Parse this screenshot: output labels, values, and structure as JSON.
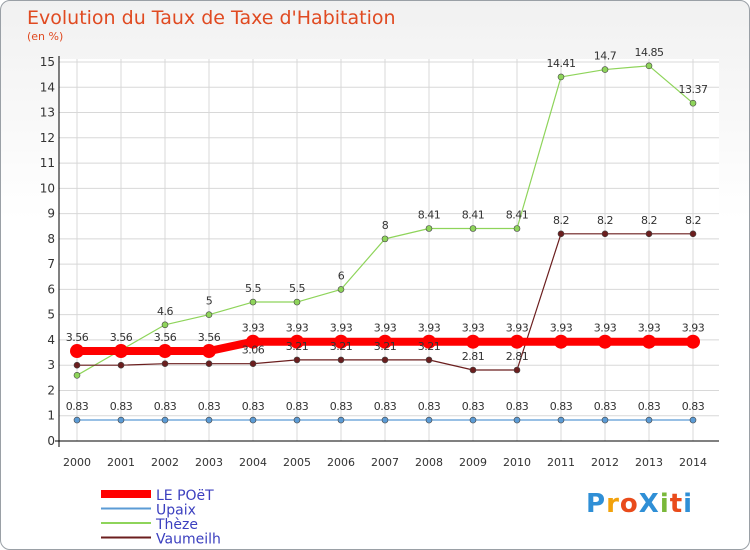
{
  "title": "Evolution du Taux de Taxe d'Habitation",
  "unit_label": "(en %)",
  "logo": {
    "text": "ProXiti",
    "colors": [
      "#2f8fd6",
      "#f2a20c",
      "#e94b1b",
      "#2f8fd6",
      "#7ab83a",
      "#e94b1b",
      "#2f8fd6"
    ]
  },
  "colors": {
    "title": "#e04a21",
    "legend_text": "#3b3fbf",
    "grid": "#d8d8d8"
  },
  "chart_data": {
    "type": "line",
    "title": "Evolution du Taux de Taxe d'Habitation",
    "ylabel": "(en %)",
    "xlabel": "",
    "ylim": [
      0,
      15
    ],
    "yticks": [
      0,
      1,
      2,
      3,
      4,
      5,
      6,
      7,
      8,
      9,
      10,
      11,
      12,
      13,
      14,
      15
    ],
    "grid": true,
    "legend_position": "bottom-left",
    "categories": [
      "2000",
      "2001",
      "2002",
      "2003",
      "2004",
      "2005",
      "2006",
      "2007",
      "2008",
      "2009",
      "2010",
      "2011",
      "2012",
      "2013",
      "2014"
    ],
    "series": [
      {
        "name": "LE POëT",
        "color": "#ff0000",
        "width": 8,
        "values": [
          3.56,
          3.56,
          3.56,
          3.56,
          3.93,
          3.93,
          3.93,
          3.93,
          3.93,
          3.93,
          3.93,
          3.93,
          3.93,
          3.93,
          3.93
        ]
      },
      {
        "name": "Upaix",
        "color": "#5b9bd5",
        "width": 1.2,
        "values": [
          0.83,
          0.83,
          0.83,
          0.83,
          0.83,
          0.83,
          0.83,
          0.83,
          0.83,
          0.83,
          0.83,
          0.83,
          0.83,
          0.83,
          0.83
        ]
      },
      {
        "name": "Thèze",
        "color": "#8ed45a",
        "width": 1.2,
        "values": [
          2.6,
          3.6,
          4.6,
          5,
          5.5,
          5.5,
          6,
          8,
          8.41,
          8.41,
          8.41,
          14.41,
          14.7,
          14.85,
          13.37
        ]
      },
      {
        "name": "Vaumeilh",
        "color": "#6b1e1e",
        "width": 1.2,
        "values": [
          3,
          3,
          3.06,
          3.06,
          3.06,
          3.21,
          3.21,
          3.21,
          3.21,
          2.81,
          2.81,
          8.2,
          8.2,
          8.2,
          8.2
        ]
      }
    ],
    "data_labels": {
      "LE POëT": [
        "3.56",
        "3.56",
        "3.56",
        "3.56",
        "3.93",
        "3.93",
        "3.93",
        "3.93",
        "3.93",
        "3.93",
        "3.93",
        "3.93",
        "3.93",
        "3.93",
        "3.93"
      ],
      "Upaix": [
        "0.83",
        "0.83",
        "0.83",
        "0.83",
        "0.83",
        "0.83",
        "0.83",
        "0.83",
        "0.83",
        "0.83",
        "0.83",
        "0.83",
        "0.83",
        "0.83",
        "0.83"
      ],
      "Thèze": [
        "",
        "",
        "4.6",
        "5",
        "5.5",
        "5.5",
        "6",
        "8",
        "8.41",
        "8.41",
        "8.41",
        "14.41",
        "14.7",
        "14.85",
        "13.37"
      ],
      "Vaumeilh": [
        "",
        "",
        "",
        "",
        "3.06",
        "3.21",
        "3.21",
        "3.21",
        "3.21",
        "2.81",
        "2.81",
        "8.2",
        "8.2",
        "8.2",
        "8.2"
      ]
    }
  }
}
